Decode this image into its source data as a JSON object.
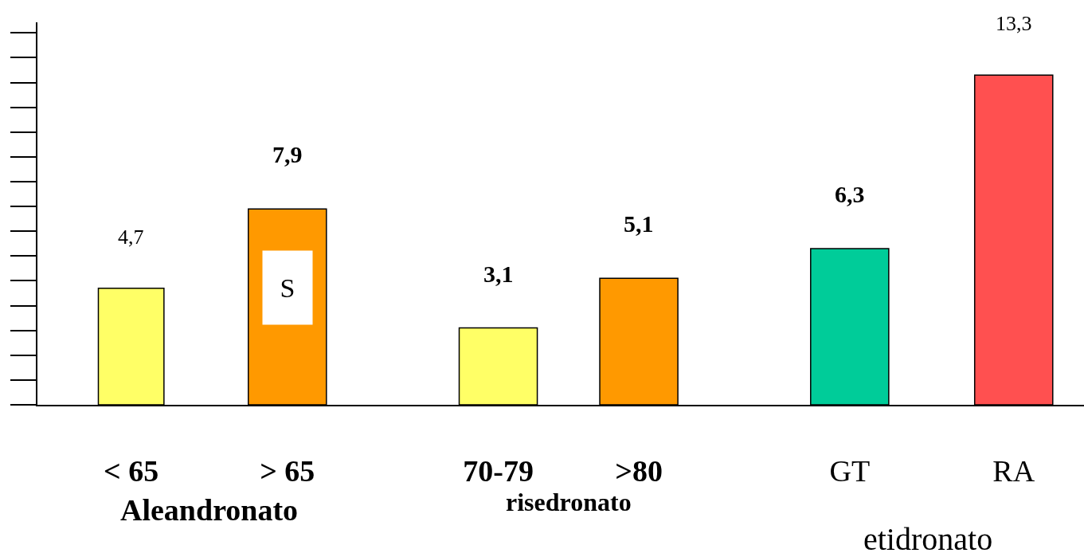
{
  "chart_data": {
    "type": "bar",
    "categories": [
      "< 65",
      "> 65",
      "70-79",
      ">80",
      "GT",
      "RA"
    ],
    "values": [
      4.7,
      7.9,
      3.1,
      5.1,
      6.3,
      13.3
    ],
    "colors": [
      "#ffff66",
      "#ff9900",
      "#ffff66",
      "#ff9900",
      "#00cc99",
      "#ff5050"
    ],
    "value_labels": [
      "4,7",
      "7,9",
      "3,1",
      "5,1",
      "6,3",
      "13,3"
    ],
    "annotations": [
      "S",
      "Aleandronato",
      "risedronato",
      "etidronato"
    ],
    "tick_labels": "x"
  }
}
